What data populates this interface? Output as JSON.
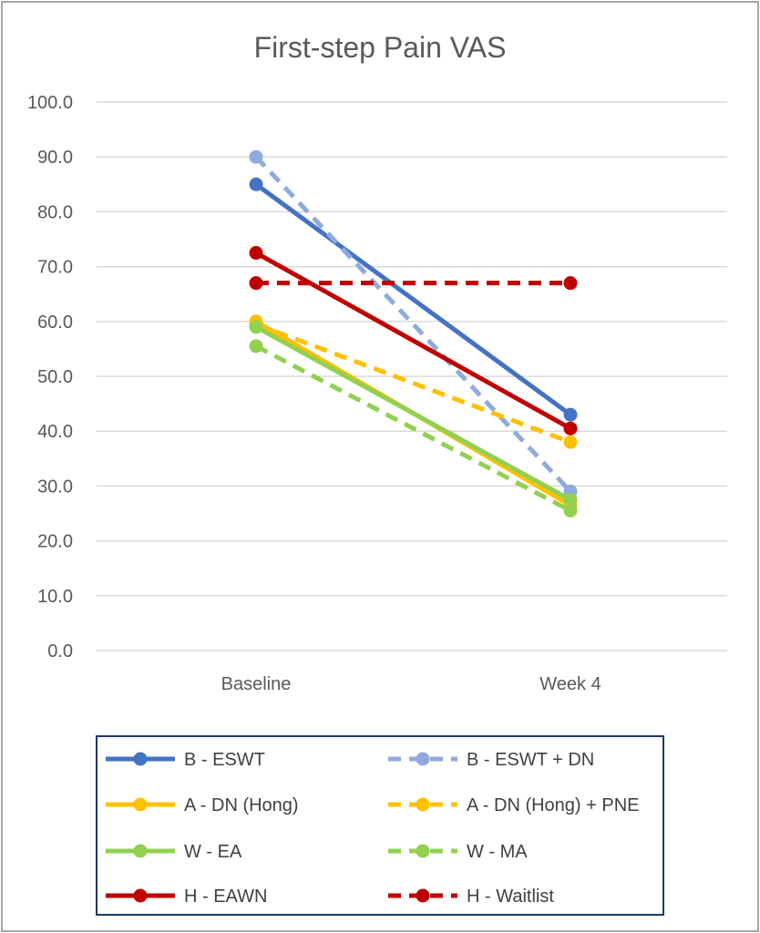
{
  "chart_data": {
    "type": "line",
    "title": "First-step Pain VAS",
    "xlabel": "",
    "ylabel": "",
    "categories": [
      "Baseline",
      "Week 4"
    ],
    "ylim": [
      0,
      100
    ],
    "yticks": [
      "0.0",
      "10.0",
      "20.0",
      "30.0",
      "40.0",
      "50.0",
      "60.0",
      "70.0",
      "80.0",
      "90.0",
      "100.0"
    ],
    "grid": true,
    "legend_position": "bottom",
    "series": [
      {
        "name": "B - ESWT",
        "values": [
          85.0,
          43.0
        ],
        "color": "#4472c4",
        "dashed": false
      },
      {
        "name": "B - ESWT + DN",
        "values": [
          90.0,
          29.0
        ],
        "color": "#8faadc",
        "dashed": true
      },
      {
        "name": "A - DN (Hong)",
        "values": [
          60.0,
          26.5
        ],
        "color": "#ffc000",
        "dashed": false
      },
      {
        "name": "A - DN (Hong) + PNE",
        "values": [
          59.5,
          38.0
        ],
        "color": "#ffc000",
        "dashed": true
      },
      {
        "name": "W - EA",
        "values": [
          59.0,
          27.5
        ],
        "color": "#92d050",
        "dashed": false
      },
      {
        "name": "W - MA",
        "values": [
          55.5,
          25.5
        ],
        "color": "#92d050",
        "dashed": true
      },
      {
        "name": "H - EAWN",
        "values": [
          72.5,
          40.5
        ],
        "color": "#c00000",
        "dashed": false
      },
      {
        "name": "H - Waitlist",
        "values": [
          67.0,
          67.0
        ],
        "color": "#c00000",
        "dashed": true
      }
    ]
  }
}
